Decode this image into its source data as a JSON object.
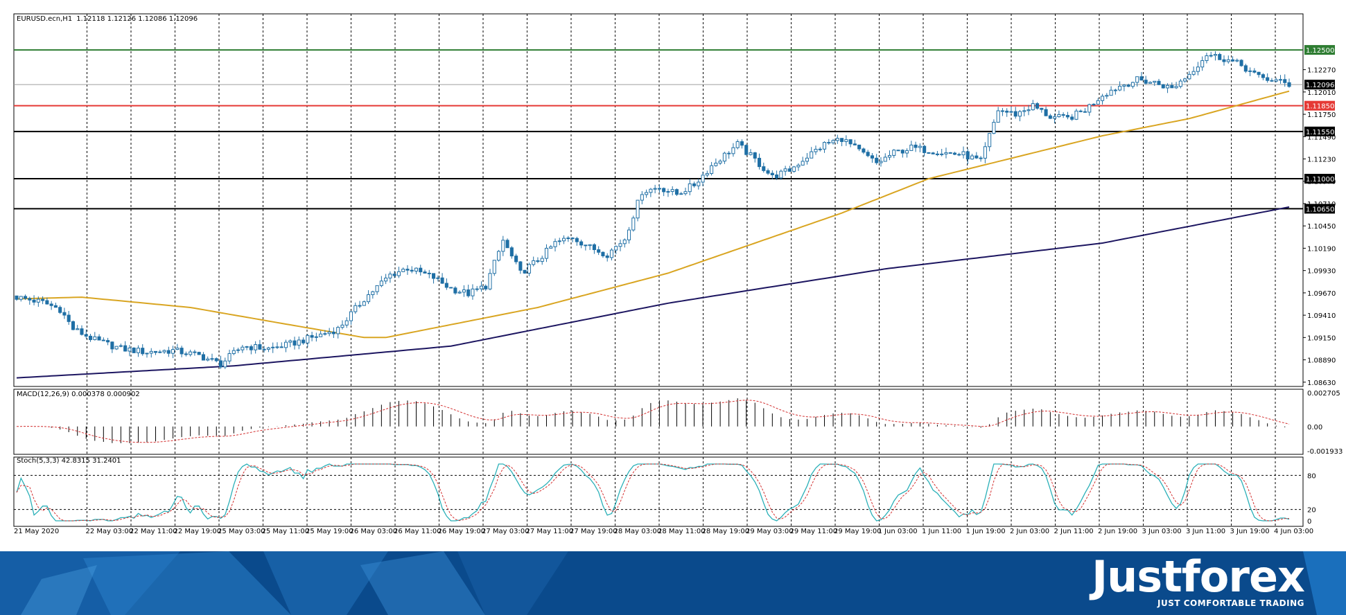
{
  "chart_data": {
    "type": "candlestick",
    "symbol_info": "EURUSD.ecn,H1",
    "ohlc_header": "1.12118 1.12126 1.12086 1.12096",
    "x_labels": [
      "21 May 2020",
      "22 May 03:00",
      "22 May 11:00",
      "22 May 19:00",
      "25 May 03:00",
      "25 May 11:00",
      "25 May 19:00",
      "26 May 03:00",
      "26 May 11:00",
      "26 May 19:00",
      "27 May 03:00",
      "27 May 11:00",
      "27 May 19:00",
      "28 May 03:00",
      "28 May 11:00",
      "28 May 19:00",
      "29 May 03:00",
      "29 May 11:00",
      "29 May 19:00",
      "1 Jun 03:00",
      "1 Jun 11:00",
      "1 Jun 19:00",
      "2 Jun 03:00",
      "2 Jun 11:00",
      "2 Jun 19:00",
      "3 Jun 03:00",
      "3 Jun 11:00",
      "3 Jun 19:00",
      "4 Jun 03:00"
    ],
    "y_ticks": [
      "1.12270",
      "1.12010",
      "1.11750",
      "1.11490",
      "1.11230",
      "1.10970",
      "1.10710",
      "1.10450",
      "1.10190",
      "1.09930",
      "1.09670",
      "1.09410",
      "1.09150",
      "1.08890",
      "1.08630"
    ],
    "y_range": [
      1.0858,
      1.1292
    ],
    "close_anchors": [
      [
        0,
        1.0962
      ],
      [
        6,
        1.0956
      ],
      [
        10,
        1.0948
      ],
      [
        13,
        1.0925
      ],
      [
        18,
        1.0912
      ],
      [
        24,
        1.0902
      ],
      [
        30,
        1.0898
      ],
      [
        36,
        1.09
      ],
      [
        42,
        1.0894
      ],
      [
        47,
        1.0884
      ],
      [
        52,
        1.0905
      ],
      [
        58,
        1.0902
      ],
      [
        62,
        1.0906
      ],
      [
        68,
        1.0915
      ],
      [
        74,
        1.0925
      ],
      [
        80,
        1.096
      ],
      [
        86,
        1.0988
      ],
      [
        90,
        1.0996
      ],
      [
        96,
        1.0985
      ],
      [
        100,
        1.0972
      ],
      [
        104,
        1.0966
      ],
      [
        108,
        1.0975
      ],
      [
        112,
        1.1028
      ],
      [
        116,
        1.099
      ],
      [
        120,
        1.1005
      ],
      [
        124,
        1.1025
      ],
      [
        128,
        1.1032
      ],
      [
        132,
        1.102
      ],
      [
        136,
        1.1012
      ],
      [
        140,
        1.103
      ],
      [
        144,
        1.1085
      ],
      [
        148,
        1.109
      ],
      [
        152,
        1.1082
      ],
      [
        156,
        1.1093
      ],
      [
        160,
        1.1115
      ],
      [
        166,
        1.114
      ],
      [
        170,
        1.1122
      ],
      [
        174,
        1.1102
      ],
      [
        178,
        1.111
      ],
      [
        182,
        1.1126
      ],
      [
        186,
        1.114
      ],
      [
        190,
        1.1147
      ],
      [
        194,
        1.1132
      ],
      [
        198,
        1.1118
      ],
      [
        202,
        1.113
      ],
      [
        206,
        1.1136
      ],
      [
        210,
        1.1133
      ],
      [
        214,
        1.113
      ],
      [
        218,
        1.1128
      ],
      [
        222,
        1.112
      ],
      [
        226,
        1.118
      ],
      [
        230,
        1.1175
      ],
      [
        234,
        1.1185
      ],
      [
        238,
        1.1172
      ],
      [
        242,
        1.117
      ],
      [
        246,
        1.118
      ],
      [
        250,
        1.1198
      ],
      [
        254,
        1.1208
      ],
      [
        258,
        1.1215
      ],
      [
        262,
        1.1212
      ],
      [
        266,
        1.1205
      ],
      [
        270,
        1.1222
      ],
      [
        274,
        1.1245
      ],
      [
        278,
        1.124
      ],
      [
        282,
        1.1232
      ],
      [
        286,
        1.1218
      ],
      [
        290,
        1.1214
      ],
      [
        293,
        1.12096
      ]
    ],
    "horizontal_levels": [
      {
        "label": "1.12500",
        "value": 1.125,
        "color": "#2e7d32"
      },
      {
        "label": "1.11850",
        "value": 1.1185,
        "color": "#e53935"
      },
      {
        "label": "1.11550",
        "value": 1.1155,
        "color": "#000000"
      },
      {
        "label": "1.11000",
        "value": 1.11,
        "color": "#000000"
      },
      {
        "label": "1.10650",
        "value": 1.1065,
        "color": "#000000"
      }
    ],
    "current_price": {
      "label": "1.12096",
      "value": 1.12096
    },
    "ma_fast_anchors": [
      [
        0,
        1.096
      ],
      [
        15,
        1.0962
      ],
      [
        40,
        1.095
      ],
      [
        65,
        1.0928
      ],
      [
        80,
        1.0915
      ],
      [
        85,
        1.0915
      ],
      [
        100,
        1.093
      ],
      [
        120,
        1.095
      ],
      [
        150,
        1.099
      ],
      [
        170,
        1.1025
      ],
      [
        190,
        1.106
      ],
      [
        210,
        1.11
      ],
      [
        230,
        1.1125
      ],
      [
        250,
        1.115
      ],
      [
        270,
        1.117
      ],
      [
        293,
        1.1202
      ]
    ],
    "ma_slow_anchors": [
      [
        0,
        1.0868
      ],
      [
        50,
        1.0882
      ],
      [
        100,
        1.0905
      ],
      [
        150,
        1.0955
      ],
      [
        200,
        1.0995
      ],
      [
        250,
        1.1025
      ],
      [
        293,
        1.1067
      ]
    ],
    "colors": {
      "bull": "#ffffff",
      "bear": "#1f6fa5",
      "candle_outline": "#1f6fa5",
      "ma_fast": "#d9a521",
      "ma_slow": "#1c1560",
      "grid": "#000000",
      "macd_hist": "#000000",
      "macd_signal": "#d32f2f",
      "stoch_main": "#2ab0b8",
      "stoch_signal": "#d32f2f",
      "footer_bg": "#0a4a8c"
    },
    "macd": {
      "label": "MACD(12,26,9) 0.000378 0.000902",
      "y_ticks": [
        "0.002705",
        "0.00",
        "-0.001933"
      ],
      "range": [
        -0.002,
        0.00275
      ]
    },
    "stoch": {
      "label": "Stoch(5,3,3) 42.8315 31.2401",
      "levels": [
        "80",
        "20",
        "0"
      ]
    }
  },
  "branding": {
    "logo": "Justforex",
    "tagline": "JUST COMFORTABLE TRADING"
  }
}
